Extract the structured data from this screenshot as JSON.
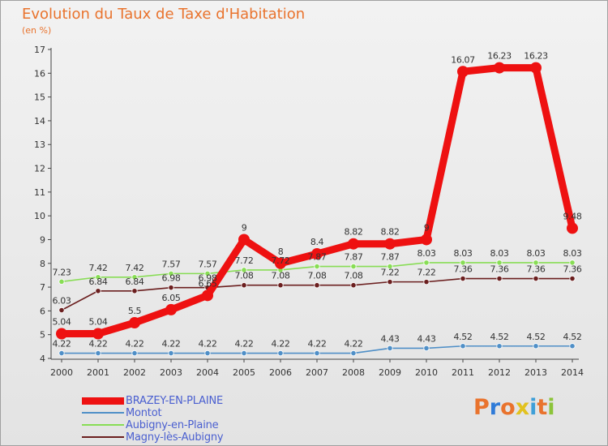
{
  "header": {
    "title": "Evolution du Taux de Taxe d'Habitation",
    "unit": "(en %)"
  },
  "brand": {
    "letters": [
      "P",
      "r",
      "o",
      "x",
      "i",
      "t",
      "i"
    ],
    "colors": [
      "#e9732d",
      "#2f7bd8",
      "#e9732d",
      "#e2c21f",
      "#3f9fd8",
      "#e9732d",
      "#8cc43a"
    ]
  },
  "colors": {
    "title": "#e9732d",
    "axis": "#555555",
    "legend_text": "#4a5fd0"
  },
  "chart_data": {
    "type": "line",
    "x": [
      "2000",
      "2001",
      "2002",
      "2003",
      "2004",
      "2005",
      "2006",
      "2007",
      "2008",
      "2009",
      "2010",
      "2011",
      "2012",
      "2013",
      "2014"
    ],
    "ylim": [
      4,
      17
    ],
    "yticks": [
      "4",
      "5",
      "6",
      "7",
      "8",
      "9",
      "10",
      "11",
      "12",
      "13",
      "14",
      "15",
      "16",
      "17"
    ],
    "grid": false,
    "legend_position": "bottom-left",
    "series": [
      {
        "name": "BRAZEY-EN-PLAINE",
        "color": "#ee1111",
        "values": [
          5.04,
          5.04,
          5.5,
          6.05,
          6.65,
          9,
          8,
          8.4,
          8.82,
          8.82,
          9,
          16.07,
          16.23,
          16.23,
          9.48
        ],
        "labels": [
          "5.04",
          "5.04",
          "5.5",
          "6.05",
          "6.65",
          "9",
          "8",
          "8.4",
          "8.82",
          "8.82",
          "9",
          "16.07",
          "16.23",
          "16.23",
          "9.48"
        ]
      },
      {
        "name": "Montot",
        "color": "#4f8fc7",
        "values": [
          4.22,
          4.22,
          4.22,
          4.22,
          4.22,
          4.22,
          4.22,
          4.22,
          4.22,
          4.43,
          4.43,
          4.52,
          4.52,
          4.52,
          4.52
        ],
        "labels": [
          "4.22",
          "4.22",
          "4.22",
          "4.22",
          "4.22",
          "4.22",
          "4.22",
          "4.22",
          "4.22",
          "4.43",
          "4.43",
          "4.52",
          "4.52",
          "4.52",
          "4.52"
        ]
      },
      {
        "name": "Aubigny-en-Plaine",
        "color": "#88dd55",
        "values": [
          7.23,
          7.42,
          7.42,
          7.57,
          7.57,
          7.72,
          7.72,
          7.87,
          7.87,
          7.87,
          8.03,
          8.03,
          8.03,
          8.03,
          8.03
        ],
        "labels": [
          "7.23",
          "7.42",
          "7.42",
          "7.57",
          "7.57",
          "7.72",
          "7.72",
          "7.87",
          "7.87",
          "7.87",
          "8.03",
          "8.03",
          "8.03",
          "8.03",
          "8.03"
        ]
      },
      {
        "name": "Magny-lès-Aubigny",
        "color": "#6b1f1f",
        "values": [
          6.03,
          6.84,
          6.84,
          6.98,
          6.98,
          7.08,
          7.08,
          7.08,
          7.08,
          7.22,
          7.22,
          7.36,
          7.36,
          7.36,
          7.36
        ],
        "labels": [
          "6.03",
          "6.84",
          "6.84",
          "6.98",
          "6.98",
          "7.08",
          "7.08",
          "7.08",
          "7.08",
          "7.22",
          "7.22",
          "7.36",
          "7.36",
          "7.36",
          "7.36"
        ]
      }
    ]
  }
}
